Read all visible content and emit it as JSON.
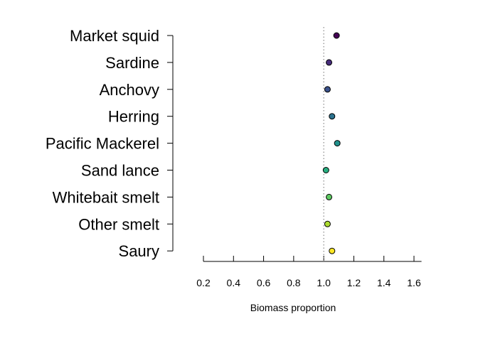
{
  "chart_data": {
    "type": "scatter",
    "title": "",
    "xlabel": "Biomass proportion",
    "ylabel": "",
    "xlim": [
      0.2,
      1.65
    ],
    "xticks": [
      0.2,
      0.4,
      0.6,
      0.8,
      1.0,
      1.2,
      1.4,
      1.6
    ],
    "xtick_labels": [
      "0.2",
      "0.4",
      "0.6",
      "0.8",
      "1.0",
      "1.2",
      "1.4",
      "1.6"
    ],
    "reference_line": 1.0,
    "categories": [
      "Market squid",
      "Sardine",
      "Anchovy",
      "Herring",
      "Pacific Mackerel",
      "Sand lance",
      "Whitebait smelt",
      "Other smelt",
      "Saury"
    ],
    "values": [
      1.085,
      1.035,
      1.025,
      1.055,
      1.09,
      1.015,
      1.035,
      1.025,
      1.055
    ],
    "colors": [
      "#440154",
      "#472d7b",
      "#3b528b",
      "#2c728e",
      "#21918c",
      "#28ae80",
      "#5ec962",
      "#addc30",
      "#fde725"
    ],
    "grid": false,
    "legend": "none"
  }
}
